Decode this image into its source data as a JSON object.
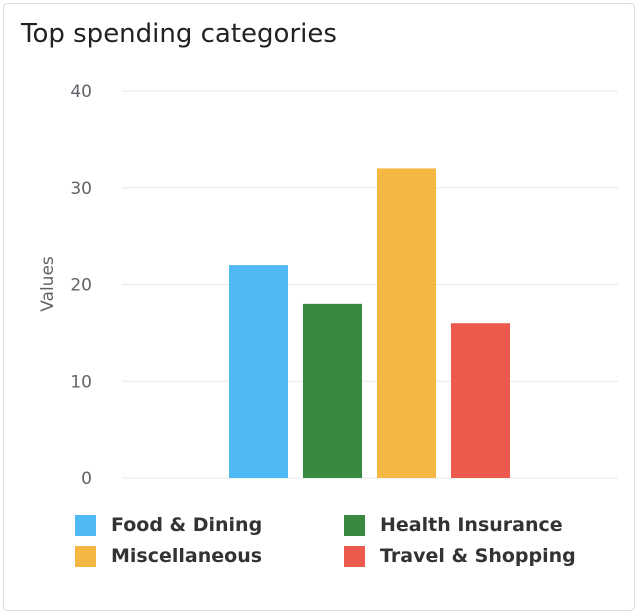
{
  "chart_data": {
    "type": "bar",
    "title": "Top spending categories",
    "ylabel": "Values",
    "xlabel": "",
    "ylim": [
      0,
      40
    ],
    "yticks": [
      0,
      10,
      20,
      30,
      40
    ],
    "grid": true,
    "legend_position": "bottom",
    "categories": [
      "Food & Dining",
      "Health Insurance",
      "Miscellaneous",
      "Travel & Shopping"
    ],
    "values": [
      22,
      18,
      32,
      16
    ],
    "colors": [
      "#4fb9f4",
      "#398940",
      "#f4b842",
      "#ec5a4d"
    ]
  },
  "legend_layout": [
    "Food & Dining",
    "Health Insurance",
    "Miscellaneous",
    "Travel & Shopping"
  ]
}
